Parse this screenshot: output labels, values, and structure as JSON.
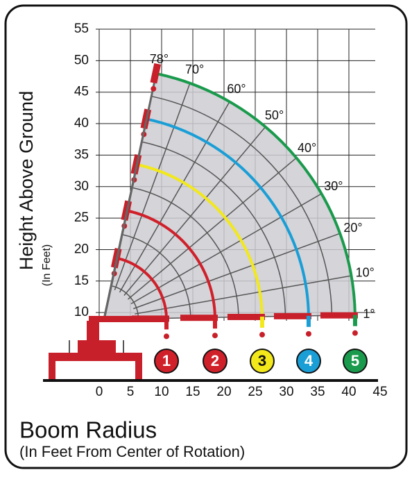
{
  "y_axis": {
    "title": "Height Above Ground",
    "subtitle": "(In Feet)",
    "ticks": [
      10,
      15,
      20,
      25,
      30,
      35,
      40,
      45,
      50,
      55
    ]
  },
  "x_axis": {
    "title": "Boom Radius",
    "subtitle": "(In Feet From Center of Rotation)",
    "ticks": [
      0,
      5,
      10,
      15,
      20,
      25,
      30,
      35,
      40,
      45
    ]
  },
  "angles": [
    "78°",
    "70°",
    "60°",
    "50°",
    "40°",
    "30°",
    "20°",
    "10°",
    "1°"
  ],
  "sections": [
    "1",
    "2",
    "3",
    "4",
    "5"
  ]
}
